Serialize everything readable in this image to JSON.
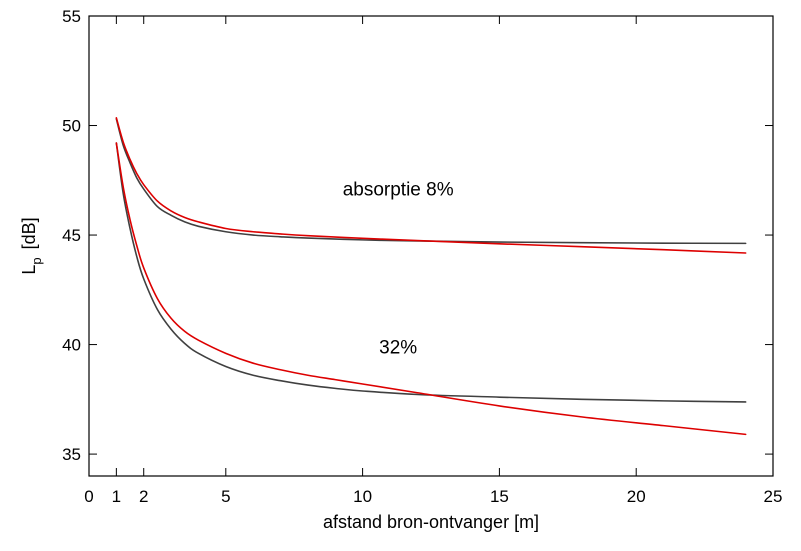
{
  "chart_data": {
    "type": "line",
    "title": "",
    "xlabel": "afstand bron-ontvanger [m]",
    "ylabel": {
      "main": "L",
      "subscript": "p",
      "unit": "[dB]"
    },
    "xlim": [
      0,
      25
    ],
    "ylim": [
      34,
      55
    ],
    "xticks": [
      0,
      1,
      2,
      5,
      10,
      15,
      20,
      25
    ],
    "yticks": [
      35,
      40,
      45,
      50,
      55
    ],
    "grid": false,
    "annotations": [
      {
        "text": "absorptie 8%",
        "x": 11.3,
        "y": 46.8
      },
      {
        "text": "32%",
        "x": 11.3,
        "y": 39.6
      }
    ],
    "series": [
      {
        "color": "#404040",
        "x": [
          1,
          1.25,
          1.5,
          1.75,
          2,
          2.5,
          3,
          3.5,
          4,
          5,
          6,
          7,
          8,
          10,
          12,
          15,
          18,
          21,
          24
        ],
        "y": [
          50.3,
          49.1,
          48.3,
          47.6,
          47.1,
          46.3,
          45.9,
          45.6,
          45.4,
          45.15,
          45.0,
          44.92,
          44.86,
          44.78,
          44.73,
          44.68,
          44.65,
          44.63,
          44.62
        ]
      },
      {
        "color": "#dd0000",
        "x": [
          1,
          1.25,
          1.5,
          1.75,
          2,
          2.5,
          3,
          3.5,
          4,
          5,
          6,
          7,
          8,
          10,
          12,
          15,
          18,
          21,
          24
        ],
        "y": [
          50.35,
          49.25,
          48.45,
          47.8,
          47.3,
          46.55,
          46.1,
          45.8,
          45.6,
          45.3,
          45.15,
          45.05,
          44.97,
          44.85,
          44.75,
          44.6,
          44.47,
          44.33,
          44.18
        ]
      },
      {
        "color": "#404040",
        "x": [
          1,
          1.25,
          1.5,
          1.75,
          2,
          2.5,
          3,
          3.5,
          4,
          5,
          6,
          7,
          8,
          9,
          10,
          12,
          15,
          18,
          21,
          24
        ],
        "y": [
          49.2,
          46.9,
          45.3,
          44.0,
          43.0,
          41.6,
          40.7,
          40.05,
          39.6,
          39.0,
          38.6,
          38.35,
          38.15,
          38.0,
          37.88,
          37.72,
          37.6,
          37.5,
          37.43,
          37.38
        ]
      },
      {
        "color": "#dd0000",
        "x": [
          1,
          1.25,
          1.5,
          1.75,
          2,
          2.5,
          3,
          3.5,
          4,
          5,
          6,
          7,
          8,
          9,
          10,
          12,
          15,
          18,
          21,
          24
        ],
        "y": [
          49.2,
          47.2,
          45.7,
          44.5,
          43.5,
          42.1,
          41.2,
          40.6,
          40.2,
          39.6,
          39.15,
          38.85,
          38.6,
          38.4,
          38.2,
          37.8,
          37.2,
          36.7,
          36.3,
          35.9
        ]
      }
    ]
  }
}
